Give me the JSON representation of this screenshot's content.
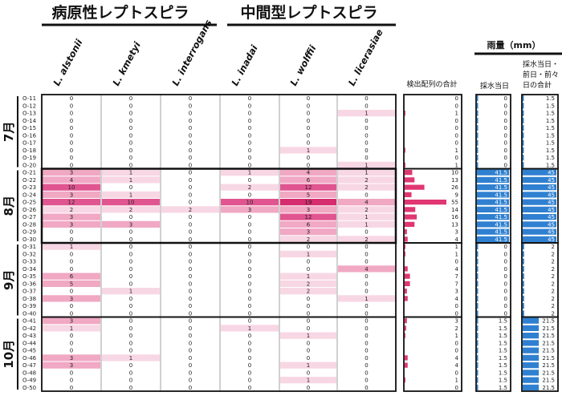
{
  "headers": {
    "pathogenic": "病原性レプトスピラ",
    "intermediate": "中間型レプトスピラ",
    "total_col": "検出配列の合計",
    "rain_group": "雨量（mm）",
    "rain_day": "採水当日",
    "rain_3day": [
      "採水当日・",
      "前日・前々",
      "日の合計"
    ]
  },
  "months": [
    "7月",
    "8月",
    "9月",
    "10月"
  ],
  "rows": [
    "O-11",
    "O-12",
    "O-13",
    "O-14",
    "O-15",
    "O-16",
    "O-17",
    "O-18",
    "O-19",
    "O-20",
    "O-21",
    "O-22",
    "O-23",
    "O-24",
    "O-25",
    "O-26",
    "O-27",
    "O-28",
    "O-29",
    "O-30",
    "O-31",
    "O-32",
    "O-33",
    "O-34",
    "O-35",
    "O-36",
    "O-37",
    "O-38",
    "O-39",
    "O-40",
    "O-41",
    "O-42",
    "O-43",
    "O-44",
    "O-45",
    "O-46",
    "O-47",
    "O-48",
    "O-49",
    "O-50"
  ],
  "colors": {
    "heat_light": "#f8d7e4",
    "heat_mid": "#f0a8c3",
    "heat_dark": "#e05590",
    "heat_darkest": "#d62d6e",
    "total_bar": "#e03672",
    "rain_bar": "#2f80d0",
    "column_divider": "#d0d0d0"
  },
  "chart_data": {
    "type": "heatmap",
    "species": [
      "L. alstonii",
      "L. kmetyi",
      "L. interrogans",
      "L. inadai",
      "L. wolffii",
      "L. licerasiae"
    ],
    "species_groups": [
      {
        "name": "病原性レプトスピラ",
        "species": [
          "L. alstonii",
          "L. kmetyi",
          "L. interrogans"
        ]
      },
      {
        "name": "中間型レプトスピラ",
        "species": [
          "L. inadai",
          "L. wolffii",
          "L. licerasiae"
        ]
      }
    ],
    "counts": [
      [
        0,
        0,
        0,
        0,
        0,
        0
      ],
      [
        0,
        0,
        0,
        0,
        0,
        0
      ],
      [
        0,
        0,
        0,
        0,
        0,
        1
      ],
      [
        0,
        0,
        0,
        0,
        0,
        0
      ],
      [
        0,
        0,
        0,
        0,
        0,
        0
      ],
      [
        0,
        0,
        0,
        0,
        0,
        0
      ],
      [
        0,
        0,
        0,
        0,
        0,
        0
      ],
      [
        0,
        0,
        0,
        0,
        1,
        0
      ],
      [
        0,
        0,
        0,
        0,
        0,
        0
      ],
      [
        0,
        0,
        0,
        0,
        0,
        1
      ],
      [
        3,
        1,
        0,
        1,
        4,
        1
      ],
      [
        4,
        1,
        0,
        0,
        6,
        2
      ],
      [
        10,
        0,
        0,
        2,
        12,
        2
      ],
      [
        3,
        1,
        0,
        0,
        5,
        0
      ],
      [
        12,
        10,
        0,
        10,
        19,
        4
      ],
      [
        2,
        2,
        2,
        3,
        3,
        2
      ],
      [
        3,
        0,
        0,
        0,
        12,
        1
      ],
      [
        3,
        3,
        0,
        0,
        6,
        1
      ],
      [
        0,
        0,
        0,
        0,
        3,
        0
      ],
      [
        0,
        0,
        0,
        0,
        2,
        2
      ],
      [
        1,
        0,
        0,
        0,
        0,
        0
      ],
      [
        0,
        0,
        0,
        0,
        1,
        0
      ],
      [
        0,
        0,
        0,
        0,
        0,
        0
      ],
      [
        0,
        0,
        0,
        0,
        0,
        4
      ],
      [
        6,
        0,
        0,
        0,
        1,
        0
      ],
      [
        5,
        0,
        0,
        0,
        2,
        0
      ],
      [
        0,
        1,
        0,
        0,
        2,
        0
      ],
      [
        3,
        0,
        0,
        0,
        0,
        1
      ],
      [
        0,
        0,
        0,
        0,
        0,
        0
      ],
      [
        0,
        0,
        0,
        0,
        0,
        0
      ],
      [
        3,
        0,
        0,
        0,
        0,
        0
      ],
      [
        1,
        0,
        0,
        1,
        0,
        0
      ],
      [
        0,
        0,
        0,
        0,
        1,
        0
      ],
      [
        0,
        0,
        0,
        0,
        0,
        0
      ],
      [
        0,
        0,
        0,
        0,
        0,
        0
      ],
      [
        3,
        1,
        0,
        0,
        0,
        0
      ],
      [
        3,
        0,
        0,
        0,
        1,
        0
      ],
      [
        0,
        0,
        0,
        0,
        0,
        0
      ],
      [
        0,
        0,
        0,
        0,
        1,
        0
      ],
      [
        0,
        0,
        0,
        0,
        0,
        0
      ]
    ],
    "totals": [
      0,
      0,
      1,
      0,
      0,
      0,
      0,
      1,
      0,
      1,
      10,
      13,
      26,
      9,
      55,
      14,
      16,
      13,
      3,
      4,
      1,
      1,
      0,
      4,
      7,
      7,
      3,
      4,
      0,
      0,
      3,
      2,
      1,
      0,
      0,
      4,
      4,
      0,
      1,
      0
    ],
    "rain_day": [
      0,
      0,
      0,
      0,
      0,
      0,
      0,
      0,
      0,
      0,
      41.5,
      41.5,
      41.5,
      41.5,
      41.5,
      41.5,
      41.5,
      41.5,
      41.5,
      41.5,
      0,
      0,
      0,
      0,
      0,
      0,
      0,
      0,
      0,
      0,
      1.5,
      1.5,
      1.5,
      1.5,
      1.5,
      1.5,
      1.5,
      1.5,
      1.5,
      1.5
    ],
    "rain_3day": [
      1.5,
      1.5,
      1.5,
      1.5,
      1.5,
      1.5,
      1.5,
      1.5,
      1.5,
      1.5,
      45,
      45,
      45,
      45,
      45,
      45,
      45,
      45,
      45,
      45,
      2,
      2,
      2,
      2,
      2,
      2,
      2,
      2,
      2,
      2,
      21.5,
      21.5,
      21.5,
      21.5,
      21.5,
      21.5,
      21.5,
      21.5,
      21.5,
      21.5
    ],
    "totals_xlim": [
      0,
      55
    ],
    "rain_day_xlim": [
      0,
      41.5
    ],
    "rain_3day_xlim": [
      0,
      45
    ]
  }
}
